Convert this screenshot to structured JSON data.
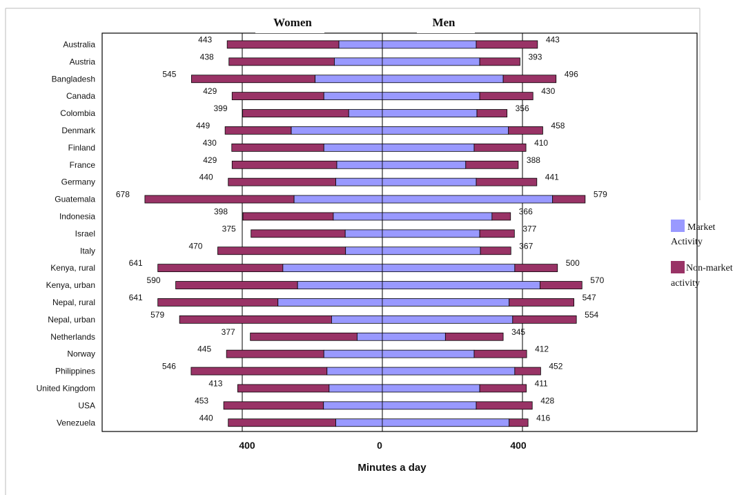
{
  "chart_data": {
    "type": "bar",
    "orientation": "horizontal",
    "layout": "back-to-back stacked",
    "panel_titles": {
      "left": "Women",
      "right": "Men"
    },
    "xlabel": "Minutes a day",
    "x_tick_labels": [
      "400",
      "0",
      "400"
    ],
    "xlim_per_side": [
      0,
      700
    ],
    "legend_placement": "right",
    "legend": [
      {
        "name": "Market Activity",
        "line1": "Market",
        "line2": "Activity",
        "color": "#9999ff"
      },
      {
        "name": "Non-market activity",
        "line1": "Non-market",
        "line2": "activity",
        "color": "#993366"
      }
    ],
    "categories": [
      "Australia",
      "Austria",
      "Bangladesh",
      "Canada",
      "Colombia",
      "Denmark",
      "Finland",
      "France",
      "Germany",
      "Guatemala",
      "Indonesia",
      "Israel",
      "Italy",
      "Kenya, rural",
      "Kenya, urban",
      "Nepal, rural",
      "Nepal, urban",
      "Netherlands",
      "Norway",
      "Philippines",
      "United Kingdom",
      "USA",
      "Venezuela"
    ],
    "women": {
      "total_labels": [
        "443",
        "438",
        "545",
        "429",
        "399",
        "449",
        "430",
        "429",
        "440",
        "678",
        "398",
        "375",
        "470",
        "641",
        "590",
        "641",
        "579",
        "377",
        "445",
        "546",
        "413",
        "453",
        "440"
      ],
      "total": [
        443,
        438,
        545,
        429,
        399,
        449,
        430,
        429,
        440,
        678,
        398,
        375,
        470,
        641,
        590,
        641,
        579,
        377,
        445,
        546,
        413,
        453,
        440
      ],
      "market": [
        124,
        137,
        192,
        167,
        96,
        260,
        167,
        130,
        133,
        252,
        140,
        106,
        105,
        284,
        242,
        298,
        145,
        72,
        167,
        158,
        152,
        168,
        133
      ]
    },
    "men": {
      "total_labels": [
        "443",
        "393",
        "496",
        "430",
        "356",
        "458",
        "410",
        "388",
        "441",
        "579",
        "366",
        "377",
        "367",
        "500",
        "570",
        "547",
        "554",
        "345",
        "412",
        "452",
        "411",
        "428",
        "416"
      ],
      "total": [
        443,
        393,
        496,
        430,
        356,
        458,
        410,
        388,
        441,
        579,
        366,
        377,
        367,
        500,
        570,
        547,
        554,
        345,
        412,
        452,
        411,
        428,
        416
      ],
      "market": [
        268,
        278,
        345,
        278,
        270,
        360,
        262,
        238,
        268,
        486,
        313,
        278,
        280,
        378,
        450,
        362,
        372,
        180,
        262,
        378,
        278,
        268,
        362
      ]
    }
  }
}
